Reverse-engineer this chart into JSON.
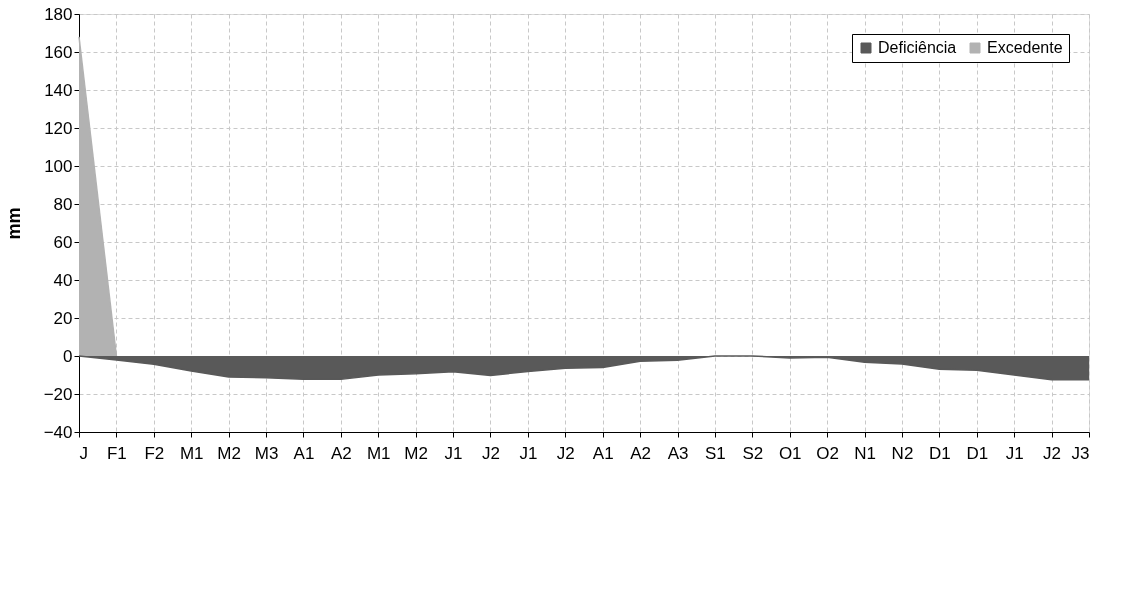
{
  "chart_data": {
    "type": "area",
    "ylabel": "mm",
    "categories": [
      "J",
      "F1",
      "F2",
      "M1",
      "M2",
      "M3",
      "A1",
      "A2",
      "M1",
      "M2",
      "J1",
      "J2",
      "J1",
      "J2",
      "A1",
      "A2",
      "A3",
      "S1",
      "S2",
      "O1",
      "O2",
      "N1",
      "N2",
      "D1",
      "D1",
      "J1",
      "J2",
      "J3"
    ],
    "series": [
      {
        "name": "Deficiência",
        "color": "#595959",
        "values": [
          0,
          -2.1,
          -4.3,
          -7.9,
          -11,
          -11.4,
          -12.3,
          -12.3,
          -10,
          -9.4,
          -8.3,
          -10.3,
          -8.1,
          -6.4,
          -6,
          -2.8,
          -2.2,
          0,
          0,
          -1,
          -0.6,
          -3.3,
          -4.2,
          -7,
          -7.5,
          -10,
          -12.5,
          -12.5
        ]
      },
      {
        "name": "Excedente",
        "color": "#b2b2b2",
        "values": [
          168,
          0,
          null,
          null,
          null,
          null,
          null,
          null,
          null,
          null,
          null,
          null,
          null,
          null,
          null,
          null,
          null,
          null,
          null,
          null,
          null,
          null,
          null,
          null,
          null,
          null,
          null,
          null
        ]
      }
    ],
    "ylim": [
      -40,
      180
    ],
    "yticks": [
      -40,
      -20,
      0,
      20,
      40,
      60,
      80,
      100,
      120,
      140,
      160,
      180
    ],
    "grid": true,
    "legend": "top right"
  }
}
